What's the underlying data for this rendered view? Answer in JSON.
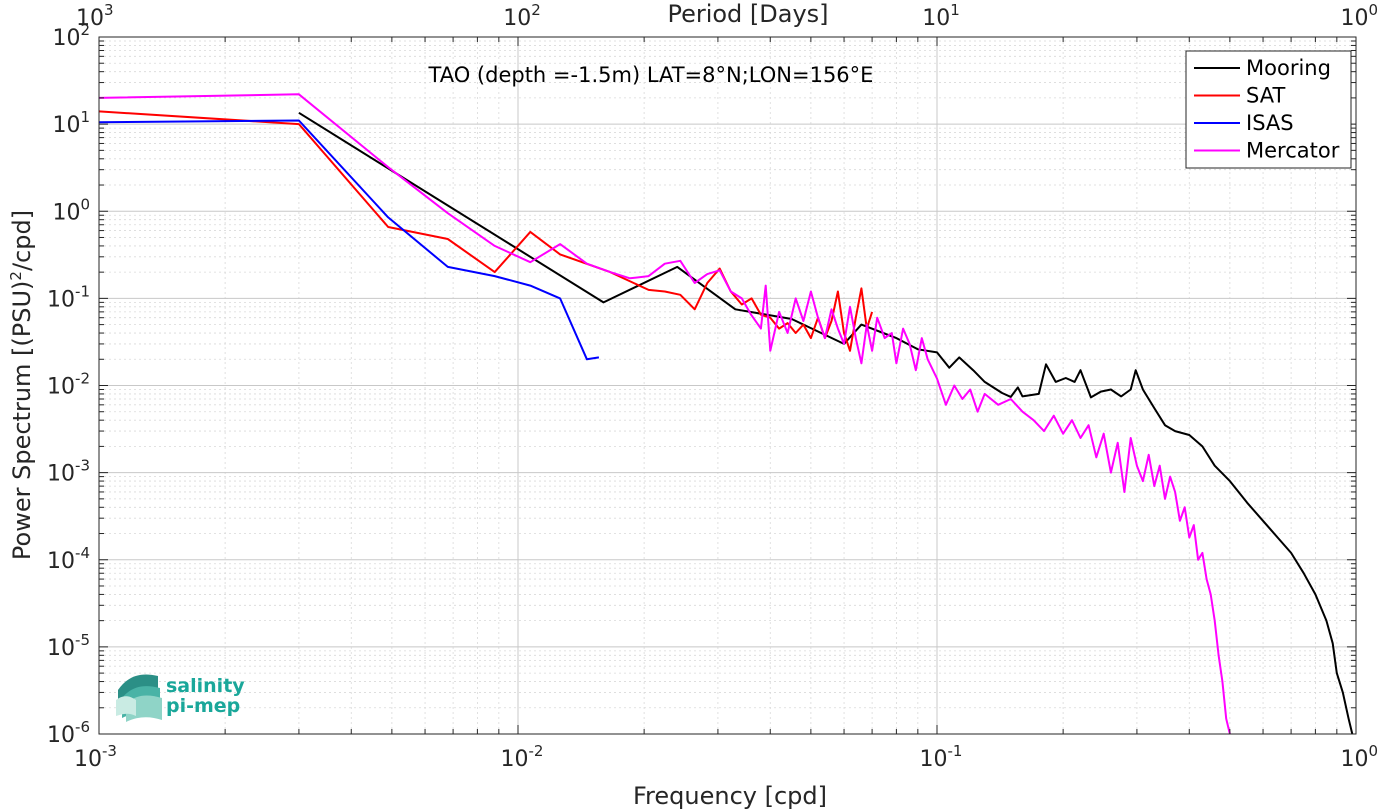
{
  "chart_data": {
    "type": "line",
    "title": "TAO (depth =-1.5m) LAT=8°N;LON=156°E",
    "xlabel": "Frequency [cpd]",
    "ylabel": "Power Spectrum [(PSU)²/cpd]",
    "ylabel_parts": {
      "before": "Power Spectrum [(PSU)",
      "sup": "2",
      "after": "/cpd]"
    },
    "x2label": "Period [Days]",
    "xscale": "log",
    "yscale": "log",
    "xlim": [
      0.001,
      1
    ],
    "ylim": [
      1e-06,
      100
    ],
    "grid": true,
    "legend_position": "top-right",
    "x_ticks": [
      {
        "value": 0.001,
        "base": "10",
        "exp": "-3"
      },
      {
        "value": 0.01,
        "base": "10",
        "exp": "-2"
      },
      {
        "value": 0.1,
        "base": "10",
        "exp": "-1"
      },
      {
        "value": 1,
        "base": "10",
        "exp": "0"
      }
    ],
    "x2_ticks": [
      {
        "value": 1000,
        "base": "10",
        "exp": "3"
      },
      {
        "value": 100,
        "base": "10",
        "exp": "2"
      },
      {
        "value": 10,
        "base": "10",
        "exp": "1"
      },
      {
        "value": 1,
        "base": "10",
        "exp": "0"
      }
    ],
    "y_ticks": [
      {
        "value": 100,
        "base": "10",
        "exp": "2"
      },
      {
        "value": 10,
        "base": "10",
        "exp": "1"
      },
      {
        "value": 1,
        "base": "10",
        "exp": "0"
      },
      {
        "value": 0.1,
        "base": "10",
        "exp": "-1"
      },
      {
        "value": 0.01,
        "base": "10",
        "exp": "-2"
      },
      {
        "value": 0.001,
        "base": "10",
        "exp": "-3"
      },
      {
        "value": 0.0001,
        "base": "10",
        "exp": "-4"
      },
      {
        "value": 1e-05,
        "base": "10",
        "exp": "-5"
      },
      {
        "value": 1e-06,
        "base": "10",
        "exp": "-6"
      }
    ],
    "series": [
      {
        "name": "Mooring",
        "color": "#000000",
        "points": [
          [
            0.003,
            13.5
          ],
          [
            0.016,
            0.09
          ],
          [
            0.024,
            0.23
          ],
          [
            0.033,
            0.075
          ],
          [
            0.045,
            0.058
          ],
          [
            0.06,
            0.03
          ],
          [
            0.066,
            0.05
          ],
          [
            0.08,
            0.035
          ],
          [
            0.09,
            0.026
          ],
          [
            0.1,
            0.024
          ],
          [
            0.107,
            0.016
          ],
          [
            0.113,
            0.021
          ],
          [
            0.122,
            0.015
          ],
          [
            0.13,
            0.011
          ],
          [
            0.143,
            0.0082
          ],
          [
            0.15,
            0.0074
          ],
          [
            0.156,
            0.0095
          ],
          [
            0.16,
            0.0075
          ],
          [
            0.175,
            0.008
          ],
          [
            0.182,
            0.0175
          ],
          [
            0.192,
            0.011
          ],
          [
            0.203,
            0.0122
          ],
          [
            0.213,
            0.011
          ],
          [
            0.22,
            0.015
          ],
          [
            0.233,
            0.0073
          ],
          [
            0.246,
            0.0085
          ],
          [
            0.26,
            0.009
          ],
          [
            0.275,
            0.0075
          ],
          [
            0.29,
            0.009
          ],
          [
            0.298,
            0.015
          ],
          [
            0.31,
            0.009
          ],
          [
            0.33,
            0.0055
          ],
          [
            0.35,
            0.0035
          ],
          [
            0.37,
            0.003
          ],
          [
            0.4,
            0.0027
          ],
          [
            0.43,
            0.002
          ],
          [
            0.46,
            0.0012
          ],
          [
            0.5,
            0.0008
          ],
          [
            0.55,
            0.00045
          ],
          [
            0.6,
            0.00028
          ],
          [
            0.65,
            0.00018
          ],
          [
            0.7,
            0.00012
          ],
          [
            0.75,
            7e-05
          ],
          [
            0.8,
            4e-05
          ],
          [
            0.85,
            2e-05
          ],
          [
            0.88,
            1.1e-05
          ],
          [
            0.9,
            5e-06
          ],
          [
            0.93,
            3e-06
          ],
          [
            0.96,
            1.5e-06
          ],
          [
            0.98,
            1e-06
          ]
        ]
      },
      {
        "name": "SAT",
        "color": "#ff0000",
        "points": [
          [
            0.001,
            14
          ],
          [
            0.003,
            10
          ],
          [
            0.0049,
            0.66
          ],
          [
            0.0068,
            0.48
          ],
          [
            0.0088,
            0.2
          ],
          [
            0.0107,
            0.58
          ],
          [
            0.0126,
            0.32
          ],
          [
            0.0166,
            0.2
          ],
          [
            0.0205,
            0.125
          ],
          [
            0.0224,
            0.12
          ],
          [
            0.0244,
            0.11
          ],
          [
            0.0264,
            0.075
          ],
          [
            0.0283,
            0.15
          ],
          [
            0.0303,
            0.22
          ],
          [
            0.0322,
            0.12
          ],
          [
            0.0342,
            0.085
          ],
          [
            0.0361,
            0.1
          ],
          [
            0.038,
            0.065
          ],
          [
            0.04,
            0.06
          ],
          [
            0.042,
            0.045
          ],
          [
            0.044,
            0.052
          ],
          [
            0.046,
            0.04
          ],
          [
            0.048,
            0.05
          ],
          [
            0.05,
            0.035
          ],
          [
            0.052,
            0.06
          ],
          [
            0.054,
            0.035
          ],
          [
            0.056,
            0.055
          ],
          [
            0.058,
            0.12
          ],
          [
            0.06,
            0.04
          ],
          [
            0.062,
            0.025
          ],
          [
            0.064,
            0.06
          ],
          [
            0.066,
            0.13
          ],
          [
            0.068,
            0.045
          ],
          [
            0.07,
            0.07
          ]
        ]
      },
      {
        "name": "ISAS",
        "color": "#0000ff",
        "points": [
          [
            0.001,
            10.5
          ],
          [
            0.003,
            11
          ],
          [
            0.0049,
            0.85
          ],
          [
            0.0068,
            0.23
          ],
          [
            0.0088,
            0.18
          ],
          [
            0.0107,
            0.14
          ],
          [
            0.0126,
            0.1
          ],
          [
            0.0146,
            0.02
          ],
          [
            0.0156,
            0.021
          ]
        ]
      },
      {
        "name": "Mercator",
        "color": "#ff00ff",
        "points": [
          [
            0.001,
            20
          ],
          [
            0.003,
            22
          ],
          [
            0.0049,
            3.2
          ],
          [
            0.0068,
            0.95
          ],
          [
            0.0088,
            0.4
          ],
          [
            0.0107,
            0.26
          ],
          [
            0.0126,
            0.42
          ],
          [
            0.0146,
            0.25
          ],
          [
            0.0166,
            0.2
          ],
          [
            0.0185,
            0.17
          ],
          [
            0.0205,
            0.18
          ],
          [
            0.0224,
            0.25
          ],
          [
            0.0244,
            0.27
          ],
          [
            0.0264,
            0.15
          ],
          [
            0.0283,
            0.19
          ],
          [
            0.0303,
            0.21
          ],
          [
            0.0322,
            0.12
          ],
          [
            0.0342,
            0.1
          ],
          [
            0.036,
            0.065
          ],
          [
            0.038,
            0.045
          ],
          [
            0.039,
            0.14
          ],
          [
            0.04,
            0.025
          ],
          [
            0.042,
            0.07
          ],
          [
            0.044,
            0.04
          ],
          [
            0.046,
            0.1
          ],
          [
            0.048,
            0.055
          ],
          [
            0.05,
            0.12
          ],
          [
            0.052,
            0.06
          ],
          [
            0.054,
            0.035
          ],
          [
            0.056,
            0.075
          ],
          [
            0.058,
            0.045
          ],
          [
            0.06,
            0.03
          ],
          [
            0.062,
            0.08
          ],
          [
            0.064,
            0.035
          ],
          [
            0.066,
            0.018
          ],
          [
            0.068,
            0.05
          ],
          [
            0.07,
            0.025
          ],
          [
            0.072,
            0.06
          ],
          [
            0.075,
            0.035
          ],
          [
            0.078,
            0.04
          ],
          [
            0.08,
            0.018
          ],
          [
            0.083,
            0.045
          ],
          [
            0.086,
            0.03
          ],
          [
            0.089,
            0.015
          ],
          [
            0.092,
            0.035
          ],
          [
            0.095,
            0.02
          ],
          [
            0.1,
            0.012
          ],
          [
            0.105,
            0.006
          ],
          [
            0.11,
            0.01
          ],
          [
            0.115,
            0.007
          ],
          [
            0.12,
            0.009
          ],
          [
            0.125,
            0.005
          ],
          [
            0.13,
            0.008
          ],
          [
            0.14,
            0.006
          ],
          [
            0.15,
            0.007
          ],
          [
            0.16,
            0.005
          ],
          [
            0.17,
            0.004
          ],
          [
            0.18,
            0.003
          ],
          [
            0.19,
            0.0045
          ],
          [
            0.2,
            0.0028
          ],
          [
            0.21,
            0.004
          ],
          [
            0.22,
            0.0025
          ],
          [
            0.23,
            0.0035
          ],
          [
            0.24,
            0.0015
          ],
          [
            0.25,
            0.0028
          ],
          [
            0.26,
            0.001
          ],
          [
            0.27,
            0.0022
          ],
          [
            0.28,
            0.0006
          ],
          [
            0.29,
            0.0025
          ],
          [
            0.3,
            0.0012
          ],
          [
            0.31,
            0.0008
          ],
          [
            0.32,
            0.0016
          ],
          [
            0.33,
            0.0007
          ],
          [
            0.34,
            0.0012
          ],
          [
            0.35,
            0.0005
          ],
          [
            0.36,
            0.0009
          ],
          [
            0.37,
            0.0006
          ],
          [
            0.38,
            0.00028
          ],
          [
            0.39,
            0.0004
          ],
          [
            0.4,
            0.00018
          ],
          [
            0.41,
            0.00025
          ],
          [
            0.42,
            0.0001
          ],
          [
            0.43,
            0.00012
          ],
          [
            0.44,
            6e-05
          ],
          [
            0.45,
            4e-05
          ],
          [
            0.46,
            2e-05
          ],
          [
            0.47,
            8e-06
          ],
          [
            0.48,
            4e-06
          ],
          [
            0.49,
            1.5e-06
          ],
          [
            0.5,
            1e-06
          ]
        ]
      }
    ]
  },
  "legend": {
    "items": [
      "Mooring",
      "SAT",
      "ISAS",
      "Mercator"
    ]
  },
  "logo": {
    "line1": "salinity",
    "line2": "pi-mep"
  }
}
